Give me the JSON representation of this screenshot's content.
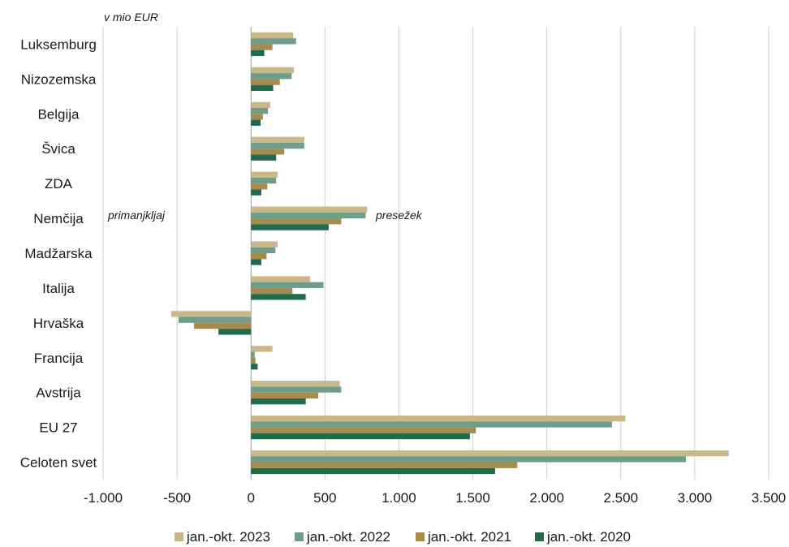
{
  "chart_data": {
    "type": "bar",
    "orientation": "horizontal",
    "unit_label": "v mio EUR",
    "annotations": {
      "negative": "primanjkljaj",
      "positive": "presežek"
    },
    "categories": [
      "Luksemburg",
      "Nizozemska",
      "Belgija",
      "Švica",
      "ZDA",
      "Nemčija",
      "Madžarska",
      "Italija",
      "Hrvaška",
      "Francija",
      "Avstrija",
      "EU 27",
      "Celoten svet"
    ],
    "series": [
      {
        "name": "jan.-okt. 2023",
        "color": "#c9b98a",
        "values": [
          285,
          290,
          130,
          360,
          180,
          785,
          180,
          400,
          -540,
          145,
          600,
          2530,
          3230
        ]
      },
      {
        "name": "jan.-okt. 2022",
        "color": "#6e9e89",
        "values": [
          305,
          275,
          115,
          360,
          170,
          775,
          165,
          490,
          -490,
          25,
          610,
          2440,
          2940
        ]
      },
      {
        "name": "jan.-okt. 2021",
        "color": "#a68b4f",
        "values": [
          145,
          195,
          80,
          225,
          110,
          610,
          105,
          280,
          -385,
          30,
          455,
          1520,
          1800
        ]
      },
      {
        "name": "jan.-okt. 2020",
        "color": "#1f6b4b",
        "values": [
          90,
          150,
          65,
          170,
          70,
          525,
          70,
          370,
          -220,
          45,
          370,
          1480,
          1650
        ]
      }
    ],
    "xlim": [
      -1000,
      3500
    ],
    "xticks": [
      -1000,
      -500,
      0,
      500,
      1000,
      1500,
      2000,
      2500,
      3000,
      3500
    ],
    "xtick_labels": [
      "-1.000",
      "-500",
      "0",
      "500",
      "1.000",
      "1.500",
      "2.000",
      "2.500",
      "3.000",
      "3.500"
    ],
    "grid": true,
    "legend_position": "bottom"
  }
}
